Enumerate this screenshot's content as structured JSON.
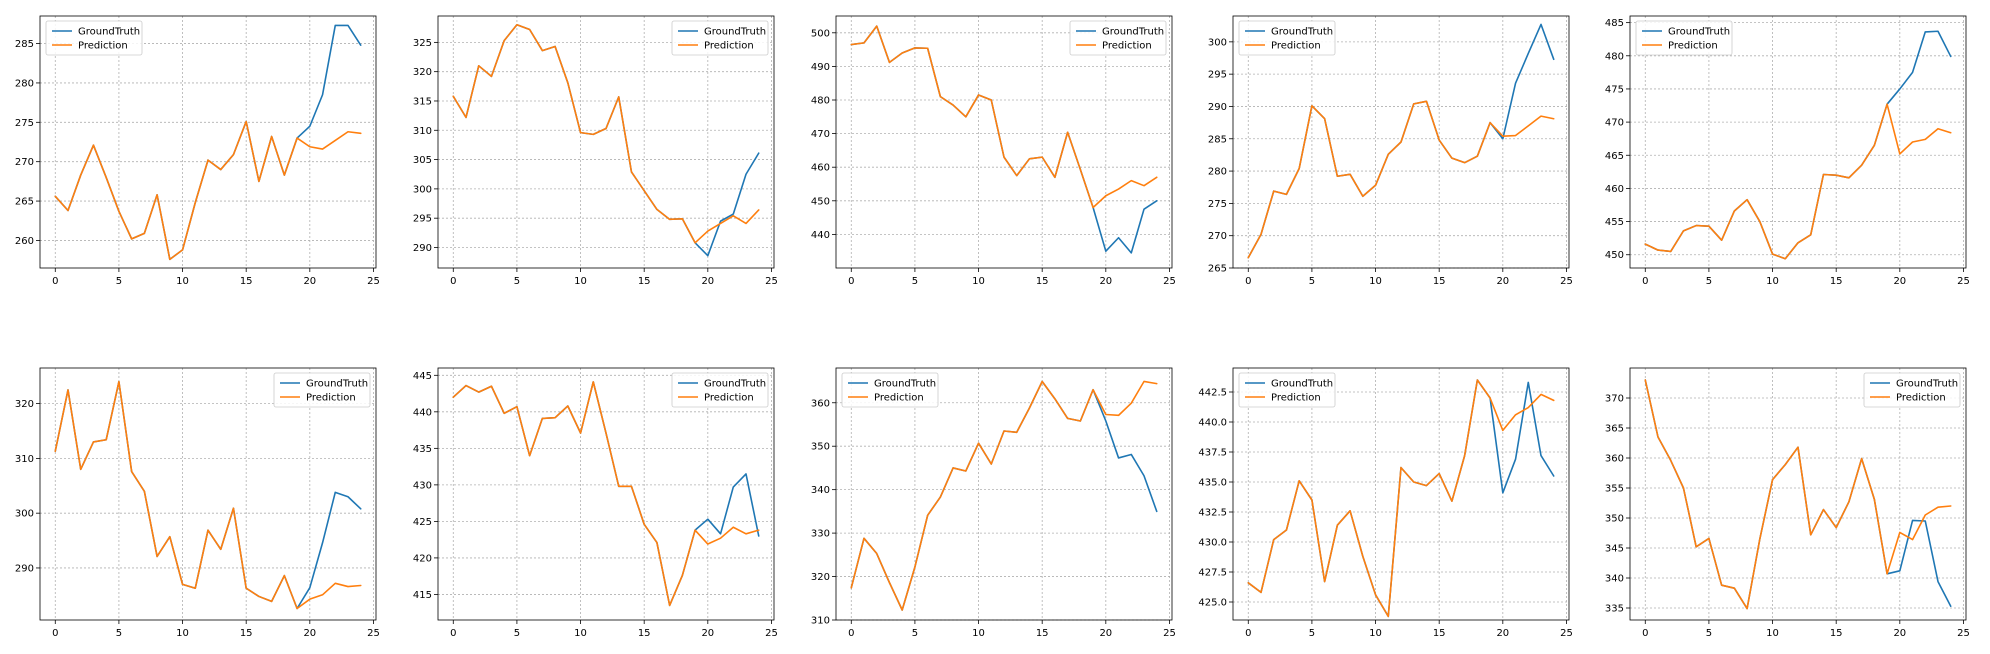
{
  "legend_labels": [
    "GroundTruth",
    "Prediction"
  ],
  "colors": {
    "ground_truth": "#1f77b4",
    "prediction": "#ff7f0e"
  },
  "chart_data": [
    {
      "type": "line",
      "legend": "top-left",
      "grid": true,
      "xlim": [
        -1.2,
        25.2
      ],
      "ylim": [
        256.5,
        288.5
      ],
      "xticks": [
        0,
        5,
        10,
        15,
        20,
        25
      ],
      "yticks": [
        260,
        265,
        270,
        275,
        280,
        285
      ],
      "x": [
        0,
        1,
        2,
        3,
        4,
        5,
        6,
        7,
        8,
        9,
        10,
        11,
        12,
        13,
        14,
        15,
        16,
        17,
        18,
        19,
        20,
        21,
        22,
        23,
        24
      ],
      "series": [
        {
          "name": "GroundTruth",
          "color": "#1f77b4",
          "values": [
            265.6,
            263.8,
            268.3,
            272.1,
            268.0,
            263.7,
            260.2,
            260.9,
            265.8,
            257.6,
            258.8,
            264.8,
            270.2,
            269.0,
            270.9,
            275.1,
            267.5,
            273.2,
            268.3,
            273.0,
            274.5,
            278.5,
            287.3,
            287.3,
            284.8
          ]
        },
        {
          "name": "Prediction",
          "color": "#ff7f0e",
          "values": [
            265.6,
            263.8,
            268.3,
            272.1,
            268.0,
            263.7,
            260.2,
            260.9,
            265.8,
            257.6,
            258.8,
            264.8,
            270.2,
            269.0,
            270.9,
            275.1,
            267.5,
            273.2,
            268.3,
            273.0,
            271.9,
            271.6,
            272.7,
            273.8,
            273.6
          ]
        }
      ]
    },
    {
      "type": "line",
      "legend": "top-right",
      "grid": true,
      "xlim": [
        -1.2,
        25.2
      ],
      "ylim": [
        286.5,
        329.5
      ],
      "xticks": [
        0,
        5,
        10,
        15,
        20,
        25
      ],
      "yticks": [
        290,
        295,
        300,
        305,
        310,
        315,
        320,
        325
      ],
      "x": [
        0,
        1,
        2,
        3,
        4,
        5,
        6,
        7,
        8,
        9,
        10,
        11,
        12,
        13,
        14,
        15,
        16,
        17,
        18,
        19,
        20,
        21,
        22,
        23,
        24
      ],
      "series": [
        {
          "name": "GroundTruth",
          "color": "#1f77b4",
          "values": [
            315.8,
            312.2,
            321.0,
            319.2,
            325.3,
            328.0,
            327.2,
            323.6,
            324.3,
            318.1,
            309.6,
            309.3,
            310.3,
            315.7,
            302.9,
            299.7,
            296.5,
            294.8,
            294.9,
            290.8,
            288.6,
            294.5,
            295.7,
            302.5,
            306.1
          ]
        },
        {
          "name": "Prediction",
          "color": "#ff7f0e",
          "values": [
            315.8,
            312.2,
            321.0,
            319.2,
            325.3,
            328.0,
            327.2,
            323.6,
            324.3,
            318.1,
            309.6,
            309.3,
            310.3,
            315.7,
            302.9,
            299.7,
            296.5,
            294.8,
            294.9,
            290.8,
            292.8,
            294.1,
            295.4,
            294.1,
            296.4
          ]
        }
      ]
    },
    {
      "type": "line",
      "legend": "top-right",
      "grid": true,
      "xlim": [
        -1.2,
        25.2
      ],
      "ylim": [
        430,
        505
      ],
      "xticks": [
        0,
        5,
        10,
        15,
        20,
        25
      ],
      "yticks": [
        440,
        450,
        460,
        470,
        480,
        490,
        500
      ],
      "x": [
        0,
        1,
        2,
        3,
        4,
        5,
        6,
        7,
        8,
        9,
        10,
        11,
        12,
        13,
        14,
        15,
        16,
        17,
        18,
        19,
        20,
        21,
        22,
        23,
        24
      ],
      "series": [
        {
          "name": "GroundTruth",
          "color": "#1f77b4",
          "values": [
            496.5,
            497.0,
            502.0,
            491.2,
            494.0,
            495.5,
            495.4,
            481.0,
            478.5,
            475.0,
            481.5,
            480.0,
            463.0,
            457.5,
            462.5,
            463.0,
            457.0,
            470.4,
            459.3,
            448.0,
            435.0,
            439.0,
            434.5,
            447.5,
            450.0
          ]
        },
        {
          "name": "Prediction",
          "color": "#ff7f0e",
          "values": [
            496.5,
            497.0,
            502.0,
            491.2,
            494.0,
            495.5,
            495.4,
            481.0,
            478.5,
            475.0,
            481.5,
            480.0,
            463.0,
            457.5,
            462.5,
            463.0,
            457.0,
            470.4,
            459.3,
            448.0,
            451.5,
            453.5,
            456.0,
            454.5,
            457.0
          ]
        }
      ]
    },
    {
      "type": "line",
      "legend": "top-left",
      "grid": true,
      "xlim": [
        -1.2,
        25.2
      ],
      "ylim": [
        265,
        304
      ],
      "xticks": [
        0,
        5,
        10,
        15,
        20,
        25
      ],
      "yticks": [
        265,
        270,
        275,
        280,
        285,
        290,
        295,
        300
      ],
      "x": [
        0,
        1,
        2,
        3,
        4,
        5,
        6,
        7,
        8,
        9,
        10,
        11,
        12,
        13,
        14,
        15,
        16,
        17,
        18,
        19,
        20,
        21,
        22,
        23,
        24
      ],
      "series": [
        {
          "name": "GroundTruth",
          "color": "#1f77b4",
          "values": [
            266.6,
            270.2,
            276.9,
            276.4,
            280.4,
            290.1,
            288.1,
            279.2,
            279.5,
            276.1,
            277.8,
            282.6,
            284.5,
            290.4,
            290.8,
            284.8,
            282.0,
            281.3,
            282.3,
            287.5,
            285.0,
            293.6,
            298.2,
            302.7,
            297.3
          ]
        },
        {
          "name": "Prediction",
          "color": "#ff7f0e",
          "values": [
            266.6,
            270.2,
            276.9,
            276.4,
            280.4,
            290.1,
            288.1,
            279.2,
            279.5,
            276.1,
            277.8,
            282.6,
            284.5,
            290.4,
            290.8,
            284.8,
            282.0,
            281.3,
            282.3,
            287.5,
            285.4,
            285.5,
            287.0,
            288.5,
            288.1
          ]
        }
      ]
    },
    {
      "type": "line",
      "legend": "top-left",
      "grid": true,
      "xlim": [
        -1.2,
        25.2
      ],
      "ylim": [
        448,
        486
      ],
      "xticks": [
        0,
        5,
        10,
        15,
        20,
        25
      ],
      "yticks": [
        450,
        455,
        460,
        465,
        470,
        475,
        480,
        485
      ],
      "x": [
        0,
        1,
        2,
        3,
        4,
        5,
        6,
        7,
        8,
        9,
        10,
        11,
        12,
        13,
        14,
        15,
        16,
        17,
        18,
        19,
        20,
        21,
        22,
        23,
        24
      ],
      "series": [
        {
          "name": "GroundTruth",
          "color": "#1f77b4",
          "values": [
            451.6,
            450.7,
            450.5,
            453.6,
            454.4,
            454.3,
            452.2,
            456.6,
            458.3,
            455.0,
            450.1,
            449.4,
            451.8,
            453.0,
            462.1,
            462.0,
            461.6,
            463.5,
            466.5,
            472.7,
            475.0,
            477.5,
            483.6,
            483.7,
            479.9
          ]
        },
        {
          "name": "Prediction",
          "color": "#ff7f0e",
          "values": [
            451.6,
            450.7,
            450.5,
            453.6,
            454.4,
            454.3,
            452.2,
            456.6,
            458.3,
            455.0,
            450.1,
            449.4,
            451.8,
            453.0,
            462.1,
            462.0,
            461.6,
            463.5,
            466.5,
            472.7,
            465.2,
            467.0,
            467.4,
            469.0,
            468.4
          ]
        }
      ]
    },
    {
      "type": "line",
      "legend": "top-right",
      "grid": true,
      "xlim": [
        -1.2,
        25.2
      ],
      "ylim": [
        280.5,
        326.5
      ],
      "xticks": [
        0,
        5,
        10,
        15,
        20,
        25
      ],
      "yticks": [
        290,
        300,
        310,
        320
      ],
      "x": [
        0,
        1,
        2,
        3,
        4,
        5,
        6,
        7,
        8,
        9,
        10,
        11,
        12,
        13,
        14,
        15,
        16,
        17,
        18,
        19,
        20,
        21,
        22,
        23,
        24
      ],
      "series": [
        {
          "name": "GroundTruth",
          "color": "#1f77b4",
          "values": [
            311.3,
            322.5,
            308.0,
            313.0,
            313.4,
            324.0,
            307.6,
            304.0,
            292.1,
            295.7,
            287.0,
            286.3,
            296.9,
            293.4,
            300.9,
            286.3,
            284.8,
            283.9,
            288.6,
            282.6,
            286.4,
            294.6,
            303.8,
            303.0,
            300.8
          ]
        },
        {
          "name": "Prediction",
          "color": "#ff7f0e",
          "values": [
            311.3,
            322.5,
            308.0,
            313.0,
            313.4,
            324.0,
            307.6,
            304.0,
            292.1,
            295.7,
            287.0,
            286.3,
            296.9,
            293.4,
            300.9,
            286.3,
            284.8,
            283.9,
            288.6,
            282.6,
            284.3,
            285.1,
            287.2,
            286.6,
            286.8
          ]
        }
      ]
    },
    {
      "type": "line",
      "legend": "top-right",
      "grid": true,
      "xlim": [
        -1.2,
        25.2
      ],
      "ylim": [
        411.5,
        446
      ],
      "xticks": [
        0,
        5,
        10,
        15,
        20,
        25
      ],
      "yticks": [
        415,
        420,
        425,
        430,
        435,
        440,
        445
      ],
      "x": [
        0,
        1,
        2,
        3,
        4,
        5,
        6,
        7,
        8,
        9,
        10,
        11,
        12,
        13,
        14,
        15,
        16,
        17,
        18,
        19,
        20,
        21,
        22,
        23,
        24
      ],
      "series": [
        {
          "name": "GroundTruth",
          "color": "#1f77b4",
          "values": [
            442.0,
            443.6,
            442.7,
            443.5,
            439.8,
            440.7,
            434.0,
            439.1,
            439.2,
            440.8,
            437.1,
            444.1,
            437.1,
            429.8,
            429.8,
            424.6,
            422.1,
            413.5,
            417.6,
            423.8,
            425.3,
            423.3,
            429.7,
            431.5,
            423.0
          ]
        },
        {
          "name": "Prediction",
          "color": "#ff7f0e",
          "values": [
            442.0,
            443.6,
            442.7,
            443.5,
            439.8,
            440.7,
            434.0,
            439.1,
            439.2,
            440.8,
            437.1,
            444.1,
            437.1,
            429.8,
            429.8,
            424.6,
            422.1,
            413.5,
            417.6,
            423.8,
            421.9,
            422.7,
            424.2,
            423.3,
            423.8
          ]
        }
      ]
    },
    {
      "type": "line",
      "legend": "top-left",
      "grid": true,
      "xlim": [
        -1.2,
        25.2
      ],
      "ylim": [
        310,
        368
      ],
      "xticks": [
        0,
        5,
        10,
        15,
        20,
        25
      ],
      "yticks": [
        310,
        320,
        330,
        340,
        350,
        360
      ],
      "x": [
        0,
        1,
        2,
        3,
        4,
        5,
        6,
        7,
        8,
        9,
        10,
        11,
        12,
        13,
        14,
        15,
        16,
        17,
        18,
        19,
        20,
        21,
        22,
        23,
        24
      ],
      "series": [
        {
          "name": "GroundTruth",
          "color": "#1f77b4",
          "values": [
            317.4,
            328.8,
            325.3,
            318.6,
            312.3,
            322.2,
            334.1,
            338.3,
            345.0,
            344.3,
            350.7,
            345.9,
            353.5,
            353.2,
            358.8,
            364.9,
            360.9,
            356.4,
            355.8,
            363.0,
            355.8,
            347.3,
            348.1,
            343.2,
            335.0
          ]
        },
        {
          "name": "Prediction",
          "color": "#ff7f0e",
          "values": [
            317.4,
            328.8,
            325.3,
            318.6,
            312.3,
            322.2,
            334.1,
            338.3,
            345.0,
            344.3,
            350.7,
            345.9,
            353.5,
            353.2,
            358.8,
            364.9,
            360.9,
            356.4,
            355.8,
            363.0,
            357.3,
            357.1,
            359.9,
            364.9,
            364.4
          ]
        }
      ]
    },
    {
      "type": "line",
      "legend": "top-left",
      "grid": true,
      "xlim": [
        -1.2,
        25.2
      ],
      "ylim": [
        423.5,
        444.5
      ],
      "xticks": [
        0,
        5,
        10,
        15,
        20,
        25
      ],
      "yticks": [
        425.0,
        427.5,
        430.0,
        432.5,
        435.0,
        437.5,
        440.0,
        442.5
      ],
      "x": [
        0,
        1,
        2,
        3,
        4,
        5,
        6,
        7,
        8,
        9,
        10,
        11,
        12,
        13,
        14,
        15,
        16,
        17,
        18,
        19,
        20,
        21,
        22,
        23,
        24
      ],
      "series": [
        {
          "name": "GroundTruth",
          "color": "#1f77b4",
          "values": [
            426.6,
            425.8,
            430.2,
            431.0,
            435.1,
            433.5,
            426.7,
            431.4,
            432.6,
            428.8,
            425.6,
            423.8,
            436.2,
            435.0,
            434.7,
            435.7,
            433.4,
            437.2,
            443.5,
            442.0,
            434.1,
            436.9,
            443.3,
            437.2,
            435.5
          ]
        },
        {
          "name": "Prediction",
          "color": "#ff7f0e",
          "values": [
            426.6,
            425.8,
            430.2,
            431.0,
            435.1,
            433.5,
            426.7,
            431.4,
            432.6,
            428.8,
            425.6,
            423.8,
            436.2,
            435.0,
            434.7,
            435.7,
            433.4,
            437.2,
            443.5,
            442.0,
            439.3,
            440.6,
            441.2,
            442.3,
            441.8
          ]
        }
      ]
    },
    {
      "type": "line",
      "legend": "top-right",
      "grid": true,
      "xlim": [
        -1.2,
        25.2
      ],
      "ylim": [
        333,
        375
      ],
      "xticks": [
        0,
        5,
        10,
        15,
        20,
        25
      ],
      "yticks": [
        335,
        340,
        345,
        350,
        355,
        360,
        365,
        370
      ],
      "x": [
        0,
        1,
        2,
        3,
        4,
        5,
        6,
        7,
        8,
        9,
        10,
        11,
        12,
        13,
        14,
        15,
        16,
        17,
        18,
        19,
        20,
        21,
        22,
        23,
        24
      ],
      "series": [
        {
          "name": "GroundTruth",
          "color": "#1f77b4",
          "values": [
            373.0,
            363.5,
            359.6,
            355.0,
            345.2,
            346.6,
            338.8,
            338.3,
            334.9,
            346.5,
            356.4,
            358.9,
            361.8,
            347.2,
            351.4,
            348.4,
            352.7,
            359.9,
            353.1,
            340.7,
            341.2,
            349.6,
            349.5,
            339.4,
            335.3
          ]
        },
        {
          "name": "Prediction",
          "color": "#ff7f0e",
          "values": [
            373.0,
            363.5,
            359.6,
            355.0,
            345.2,
            346.6,
            338.8,
            338.3,
            334.9,
            346.5,
            356.4,
            358.9,
            361.8,
            347.2,
            351.4,
            348.4,
            352.7,
            359.9,
            353.1,
            340.7,
            347.6,
            346.4,
            350.5,
            351.8,
            352.0
          ]
        }
      ]
    }
  ]
}
